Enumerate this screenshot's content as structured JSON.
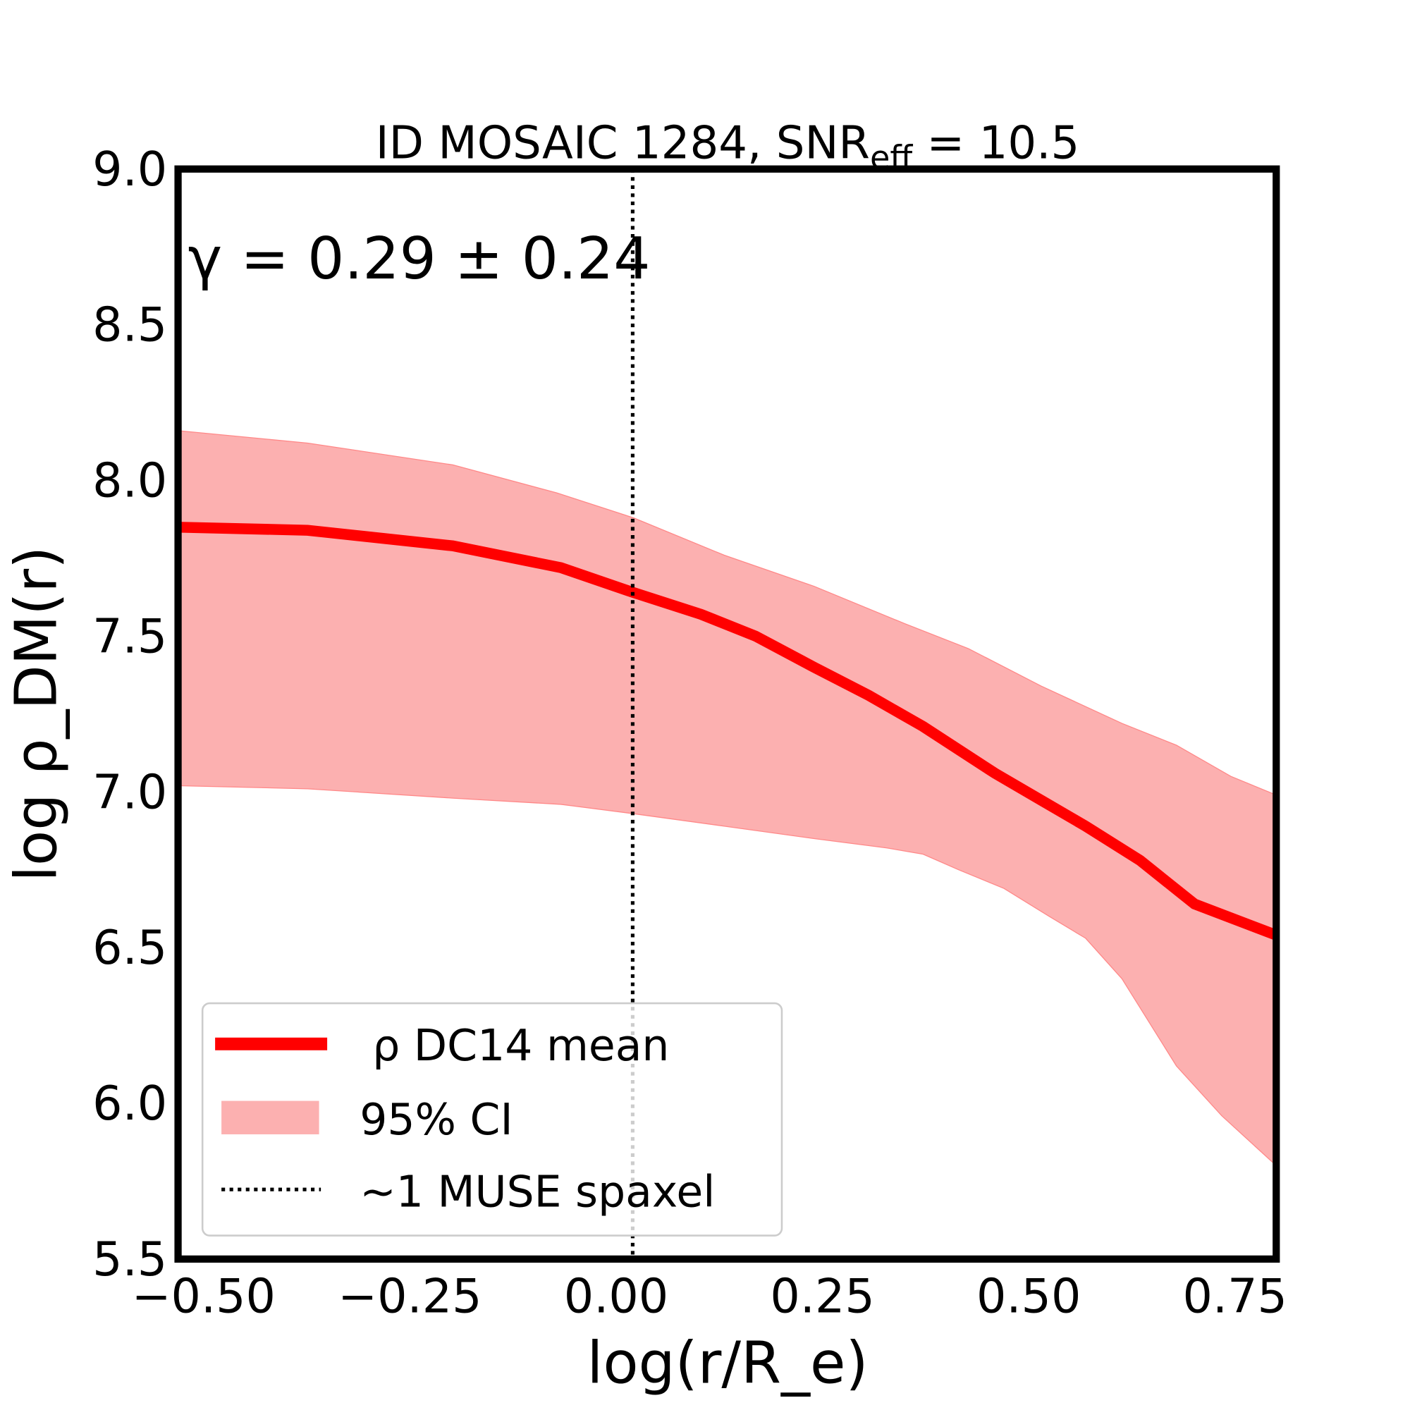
{
  "chart_data": {
    "type": "line",
    "title": "ID MOSAIC 1284, SNR_eff = 10.5",
    "title_parts": {
      "main": "ID MOSAIC 1284, SNR",
      "sub": "eff",
      "tail": " = 10.5"
    },
    "annotation": "γ = 0.29 ± 0.24",
    "xlabel": "log(r/R_e)",
    "ylabel": "log ρ_DM(r)",
    "xlim": [
      -0.531,
      0.8
    ],
    "ylim": [
      5.5,
      9.0
    ],
    "xticks": [
      "−0.50",
      "−0.25",
      "0.00",
      "0.25",
      "0.50",
      "0.75"
    ],
    "xtick_values": [
      -0.5,
      -0.25,
      0,
      0.25,
      0.5,
      0.75
    ],
    "yticks": [
      "5.5",
      "6.0",
      "6.5",
      "7.0",
      "7.5",
      "8.0",
      "8.5",
      "9.0"
    ],
    "ytick_values": [
      5.5,
      6.0,
      6.5,
      7.0,
      7.5,
      8.0,
      8.5,
      9.0
    ],
    "grid": false,
    "legend_placement": "lower-left",
    "series": [
      {
        "name": "ρ DC14 mean",
        "color": "#ff0000",
        "x": [
          -0.531,
          -0.374,
          -0.198,
          -0.067,
          0.021,
          0.103,
          0.169,
          0.24,
          0.306,
          0.372,
          0.459,
          0.569,
          0.635,
          0.701,
          0.8
        ],
        "y": [
          7.85,
          7.84,
          7.79,
          7.72,
          7.64,
          7.57,
          7.5,
          7.4,
          7.31,
          7.21,
          7.06,
          6.89,
          6.78,
          6.64,
          6.54
        ]
      },
      {
        "name": "95% CI",
        "color": "#fcb0b0",
        "type": "band",
        "upper_x": [
          -0.531,
          -0.374,
          -0.198,
          -0.072,
          0.021,
          0.131,
          0.24,
          0.35,
          0.427,
          0.515,
          0.613,
          0.679,
          0.745,
          0.8
        ],
        "upper_y": [
          8.16,
          8.12,
          8.05,
          7.96,
          7.88,
          7.76,
          7.66,
          7.54,
          7.46,
          7.34,
          7.22,
          7.15,
          7.05,
          6.99
        ],
        "lower_x": [
          -0.531,
          -0.374,
          -0.198,
          -0.067,
          0.021,
          0.131,
          0.24,
          0.328,
          0.372,
          0.415,
          0.47,
          0.525,
          0.569,
          0.613,
          0.679,
          0.734,
          0.8
        ],
        "lower_y": [
          7.02,
          7.01,
          6.98,
          6.96,
          6.93,
          6.89,
          6.85,
          6.82,
          6.8,
          6.75,
          6.69,
          6.6,
          6.53,
          6.4,
          6.12,
          5.96,
          5.8
        ]
      },
      {
        "name": "~1 MUSE spaxel",
        "color": "#000000",
        "type": "vline",
        "x": 0.02
      }
    ]
  }
}
